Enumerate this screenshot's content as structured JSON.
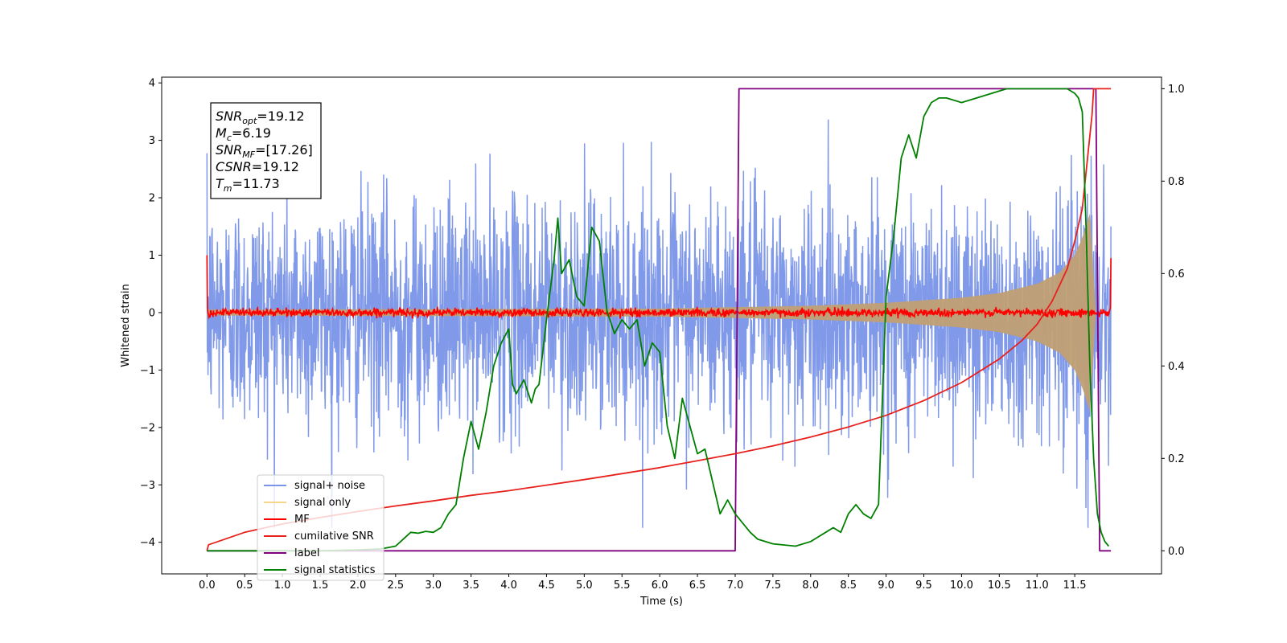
{
  "chart_data": {
    "type": "line",
    "xlabel": "Time (s)",
    "ylabel": "Whitened strain",
    "xlim": [
      -0.6,
      12.65
    ],
    "ylim_left": [
      -4.55,
      4.1
    ],
    "ylim_right": [
      -0.05,
      1.025
    ],
    "x_ticks": [
      "0.0",
      "0.5",
      "1.0",
      "1.5",
      "2.0",
      "2.5",
      "3.0",
      "3.5",
      "4.0",
      "4.5",
      "5.0",
      "5.5",
      "6.0",
      "6.5",
      "7.0",
      "7.5",
      "8.0",
      "8.5",
      "9.0",
      "9.5",
      "10.0",
      "10.5",
      "11.0",
      "11.5"
    ],
    "y_ticks_left": [
      "4",
      "3",
      "2",
      "1",
      "0",
      "−1",
      "−2",
      "−3",
      "−4"
    ],
    "y_ticks_right": [
      "1.0",
      "0.8",
      "0.6",
      "0.4",
      "0.2",
      "0.0"
    ],
    "grid": false,
    "legend_position": "lower-left",
    "info_box": {
      "snr_opt": "=19.12",
      "mc": "=6.19",
      "snr_mf": "=[17.26]",
      "csnr": "=19.12",
      "tm": "=11.73"
    },
    "colors": {
      "signal_noise": "#7a94e8",
      "signal_only": "#c09f74",
      "mf": "#ff0000",
      "cumulative_snr": "#e8211d",
      "label": "#800080",
      "signal_statistics": "#008000"
    },
    "series": [
      {
        "name": "signal+ noise",
        "axis": "left",
        "description_values": {
          "t_start": 0.0,
          "t_end": 11.98,
          "noise_std": 1.0
        }
      },
      {
        "name": "signal only",
        "axis": "left",
        "envelope": {
          "x": [
            0.0,
            6.0,
            8.0,
            9.0,
            10.0,
            10.5,
            11.0,
            11.3,
            11.5,
            11.6,
            11.73,
            11.75,
            11.98
          ],
          "amplitude": [
            0.05,
            0.07,
            0.12,
            0.17,
            0.26,
            0.34,
            0.5,
            0.7,
            1.0,
            1.3,
            1.85,
            0.0,
            0.0
          ]
        }
      },
      {
        "name": "MF",
        "axis": "left",
        "noise_std": 0.035,
        "edge_values": {
          "start": 1.0,
          "end": 0.95
        }
      },
      {
        "name": "cumilative SNR",
        "axis": "right",
        "x": [
          0.0,
          0.02,
          0.5,
          1.0,
          1.5,
          2.0,
          2.5,
          3.0,
          3.5,
          4.0,
          4.5,
          5.0,
          5.5,
          6.0,
          6.5,
          7.0,
          7.5,
          8.0,
          8.5,
          9.0,
          9.5,
          10.0,
          10.5,
          10.8,
          11.0,
          11.2,
          11.4,
          11.5,
          11.6,
          11.73,
          11.75,
          11.98
        ],
        "values": [
          0.0,
          0.013,
          0.04,
          0.058,
          0.072,
          0.085,
          0.097,
          0.108,
          0.12,
          0.13,
          0.142,
          0.154,
          0.167,
          0.18,
          0.195,
          0.21,
          0.227,
          0.246,
          0.268,
          0.293,
          0.325,
          0.364,
          0.415,
          0.455,
          0.49,
          0.54,
          0.61,
          0.67,
          0.74,
          0.945,
          1.0,
          1.0
        ]
      },
      {
        "name": "label",
        "axis": "right",
        "x": [
          0.0,
          7.0,
          7.05,
          11.78,
          11.83,
          11.98
        ],
        "values": [
          0.0,
          0.0,
          1.0,
          1.0,
          0.0,
          0.0
        ]
      },
      {
        "name": "signal statistics",
        "axis": "right",
        "x": [
          0.0,
          0.5,
          1.0,
          1.5,
          2.0,
          2.3,
          2.5,
          2.6,
          2.7,
          2.8,
          2.9,
          3.0,
          3.1,
          3.2,
          3.3,
          3.4,
          3.5,
          3.6,
          3.7,
          3.8,
          3.9,
          4.0,
          4.05,
          4.1,
          4.2,
          4.3,
          4.35,
          4.4,
          4.5,
          4.6,
          4.65,
          4.7,
          4.8,
          4.9,
          5.0,
          5.1,
          5.2,
          5.3,
          5.4,
          5.5,
          5.6,
          5.7,
          5.8,
          5.9,
          6.0,
          6.1,
          6.2,
          6.3,
          6.4,
          6.5,
          6.6,
          6.7,
          6.8,
          6.9,
          7.0,
          7.1,
          7.2,
          7.3,
          7.5,
          7.8,
          8.0,
          8.1,
          8.2,
          8.3,
          8.4,
          8.5,
          8.6,
          8.7,
          8.8,
          8.9,
          9.0,
          9.1,
          9.2,
          9.3,
          9.4,
          9.5,
          9.6,
          9.7,
          9.8,
          10.0,
          10.2,
          10.4,
          10.6,
          10.8,
          11.0,
          11.2,
          11.4,
          11.5,
          11.55,
          11.6,
          11.65,
          11.7,
          11.75,
          11.8,
          11.85,
          11.9,
          11.95
        ],
        "values": [
          0.0,
          0.0,
          0.0,
          0.0,
          0.002,
          0.004,
          0.01,
          0.025,
          0.04,
          0.038,
          0.042,
          0.04,
          0.05,
          0.08,
          0.1,
          0.2,
          0.28,
          0.22,
          0.3,
          0.4,
          0.45,
          0.48,
          0.36,
          0.34,
          0.37,
          0.32,
          0.35,
          0.36,
          0.5,
          0.63,
          0.72,
          0.6,
          0.63,
          0.55,
          0.53,
          0.7,
          0.67,
          0.52,
          0.47,
          0.5,
          0.48,
          0.5,
          0.4,
          0.45,
          0.43,
          0.27,
          0.2,
          0.33,
          0.27,
          0.21,
          0.22,
          0.15,
          0.08,
          0.11,
          0.08,
          0.06,
          0.04,
          0.025,
          0.015,
          0.01,
          0.02,
          0.03,
          0.04,
          0.05,
          0.04,
          0.08,
          0.1,
          0.08,
          0.07,
          0.1,
          0.55,
          0.68,
          0.85,
          0.9,
          0.85,
          0.94,
          0.97,
          0.98,
          0.98,
          0.97,
          0.98,
          0.99,
          1.0,
          1.0,
          1.0,
          1.0,
          1.0,
          0.99,
          0.98,
          0.95,
          0.7,
          0.4,
          0.2,
          0.08,
          0.04,
          0.02,
          0.01
        ]
      }
    ]
  }
}
